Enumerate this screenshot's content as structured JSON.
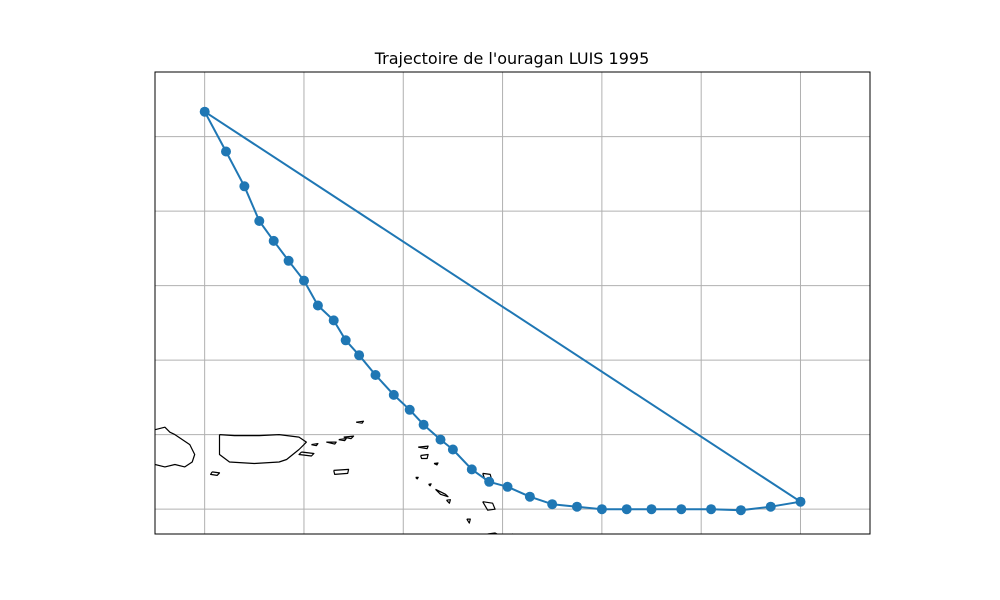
{
  "map": {
    "title": "Trajectoire de l'ouragan LUIS 1995",
    "track_color": "#1f77b4",
    "coastline_color": "#000000",
    "grid_color": "#b0b0b0",
    "grid": true,
    "extent": {
      "lon": [
        -68.5,
        -54.1
      ],
      "lat": [
        16.5,
        25.8
      ]
    },
    "grid_lon": [
      -67.5,
      -65.5,
      -63.5,
      -61.5,
      -59.5,
      -57.5,
      -55.5
    ],
    "grid_lat": [
      17.0,
      18.5,
      20.0,
      21.5,
      23.0,
      24.5
    ],
    "track": {
      "lon": [
        -67.5,
        -67.07,
        -66.7,
        -66.4,
        -66.11,
        -65.81,
        -65.5,
        -65.22,
        -64.9,
        -64.66,
        -64.39,
        -64.06,
        -63.69,
        -63.37,
        -63.09,
        -62.75,
        -62.5,
        -62.12,
        -61.77,
        -61.4,
        -60.95,
        -60.5,
        -60.0,
        -59.5,
        -59.0,
        -58.5,
        -57.9,
        -57.3,
        -56.7,
        -56.1,
        -55.5
      ],
      "lat": [
        25.0,
        24.2,
        23.5,
        22.8,
        22.4,
        22.0,
        21.6,
        21.1,
        20.8,
        20.4,
        20.1,
        19.7,
        19.3,
        19.0,
        18.7,
        18.4,
        18.2,
        17.8,
        17.55,
        17.45,
        17.25,
        17.1,
        17.05,
        17.0,
        17.0,
        17.0,
        17.0,
        17.0,
        16.98,
        17.05,
        17.15
      ]
    },
    "coastlines": [
      {
        "name": "Hispaniola (partial)",
        "lon": [
          -68.5,
          -68.3,
          -68.2,
          -68.1,
          -67.8,
          -67.7,
          -67.75,
          -67.9,
          -68.1,
          -68.3,
          -68.5
        ],
        "lat": [
          18.6,
          18.65,
          18.55,
          18.5,
          18.3,
          18.1,
          17.95,
          17.85,
          17.9,
          17.85,
          17.9
        ]
      },
      {
        "name": "Mona Island",
        "lon": [
          -67.35,
          -67.2,
          -67.25,
          -67.38,
          -67.35
        ],
        "lat": [
          17.75,
          17.73,
          17.68,
          17.7,
          17.75
        ]
      },
      {
        "name": "Puerto Rico",
        "lon": [
          -67.2,
          -66.9,
          -66.4,
          -66.0,
          -65.6,
          -65.45,
          -65.5,
          -65.6,
          -65.85,
          -66.0,
          -66.5,
          -67.0,
          -67.2,
          -67.2
        ],
        "lat": [
          18.5,
          18.48,
          18.48,
          18.5,
          18.45,
          18.35,
          18.3,
          18.2,
          18.0,
          17.95,
          17.92,
          17.95,
          18.1,
          18.5
        ]
      },
      {
        "name": "Vieques",
        "lon": [
          -65.55,
          -65.3,
          -65.35,
          -65.6,
          -65.55
        ],
        "lat": [
          18.15,
          18.12,
          18.07,
          18.1,
          18.15
        ]
      },
      {
        "name": "Culebra",
        "lon": [
          -65.35,
          -65.22,
          -65.25,
          -65.35
        ],
        "lat": [
          18.3,
          18.32,
          18.28,
          18.3
        ]
      },
      {
        "name": "St Thomas",
        "lon": [
          -65.05,
          -64.85,
          -64.88,
          -65.05
        ],
        "lat": [
          18.35,
          18.35,
          18.31,
          18.35
        ]
      },
      {
        "name": "St John",
        "lon": [
          -64.8,
          -64.65,
          -64.68,
          -64.8
        ],
        "lat": [
          18.4,
          18.42,
          18.38,
          18.4
        ]
      },
      {
        "name": "Tortola",
        "lon": [
          -64.7,
          -64.5,
          -64.55,
          -64.7
        ],
        "lat": [
          18.45,
          18.47,
          18.42,
          18.45
        ]
      },
      {
        "name": "Anegada",
        "lon": [
          -64.45,
          -64.3,
          -64.33,
          -64.45
        ],
        "lat": [
          18.75,
          18.77,
          18.73,
          18.75
        ]
      },
      {
        "name": "St Croix",
        "lon": [
          -64.9,
          -64.6,
          -64.62,
          -64.88,
          -64.9
        ],
        "lat": [
          17.78,
          17.8,
          17.72,
          17.7,
          17.78
        ]
      },
      {
        "name": "Anguilla",
        "lon": [
          -63.2,
          -63.0,
          -63.02,
          -63.2
        ],
        "lat": [
          18.25,
          18.27,
          18.22,
          18.25
        ]
      },
      {
        "name": "St Martin",
        "lon": [
          -63.15,
          -63.0,
          -63.02,
          -63.13,
          -63.15
        ],
        "lat": [
          18.08,
          18.1,
          18.02,
          18.02,
          18.08
        ]
      },
      {
        "name": "St Barthelemy",
        "lon": [
          -62.88,
          -62.8,
          -62.82,
          -62.88
        ],
        "lat": [
          17.92,
          17.93,
          17.89,
          17.92
        ]
      },
      {
        "name": "Saba",
        "lon": [
          -63.25,
          -63.2,
          -63.22,
          -63.25
        ],
        "lat": [
          17.64,
          17.64,
          17.61,
          17.64
        ]
      },
      {
        "name": "St Eustatius",
        "lon": [
          -62.99,
          -62.94,
          -62.96,
          -62.99
        ],
        "lat": [
          17.5,
          17.51,
          17.47,
          17.5
        ]
      },
      {
        "name": "St Kitts",
        "lon": [
          -62.85,
          -62.65,
          -62.6,
          -62.75,
          -62.85
        ],
        "lat": [
          17.4,
          17.3,
          17.25,
          17.3,
          17.4
        ]
      },
      {
        "name": "Nevis",
        "lon": [
          -62.63,
          -62.55,
          -62.57,
          -62.63
        ],
        "lat": [
          17.18,
          17.19,
          17.12,
          17.18
        ]
      },
      {
        "name": "Barbuda",
        "lon": [
          -61.9,
          -61.75,
          -61.72,
          -61.85,
          -61.9
        ],
        "lat": [
          17.72,
          17.7,
          17.6,
          17.58,
          17.72
        ]
      },
      {
        "name": "Antigua",
        "lon": [
          -61.9,
          -61.7,
          -61.65,
          -61.8,
          -61.9
        ],
        "lat": [
          17.15,
          17.12,
          17.0,
          16.98,
          17.15
        ]
      },
      {
        "name": "Montserrat",
        "lon": [
          -62.22,
          -62.15,
          -62.17,
          -62.22
        ],
        "lat": [
          16.8,
          16.8,
          16.72,
          16.8
        ]
      },
      {
        "name": "Guadeloupe",
        "lon": [
          -61.8,
          -61.65,
          -61.55,
          -61.5,
          -61.3,
          -61.2,
          -61.4,
          -61.55,
          -61.7,
          -61.8,
          -61.8
        ],
        "lat": [
          16.5,
          16.52,
          16.47,
          16.45,
          16.5,
          16.42,
          16.38,
          16.35,
          16.3,
          16.35,
          16.5
        ]
      },
      {
        "name": "Marie-Galante",
        "lon": [
          -61.3,
          -61.2,
          -61.2,
          -61.3
        ],
        "lat": [
          15.95,
          15.95,
          15.87,
          15.95
        ]
      }
    ]
  }
}
